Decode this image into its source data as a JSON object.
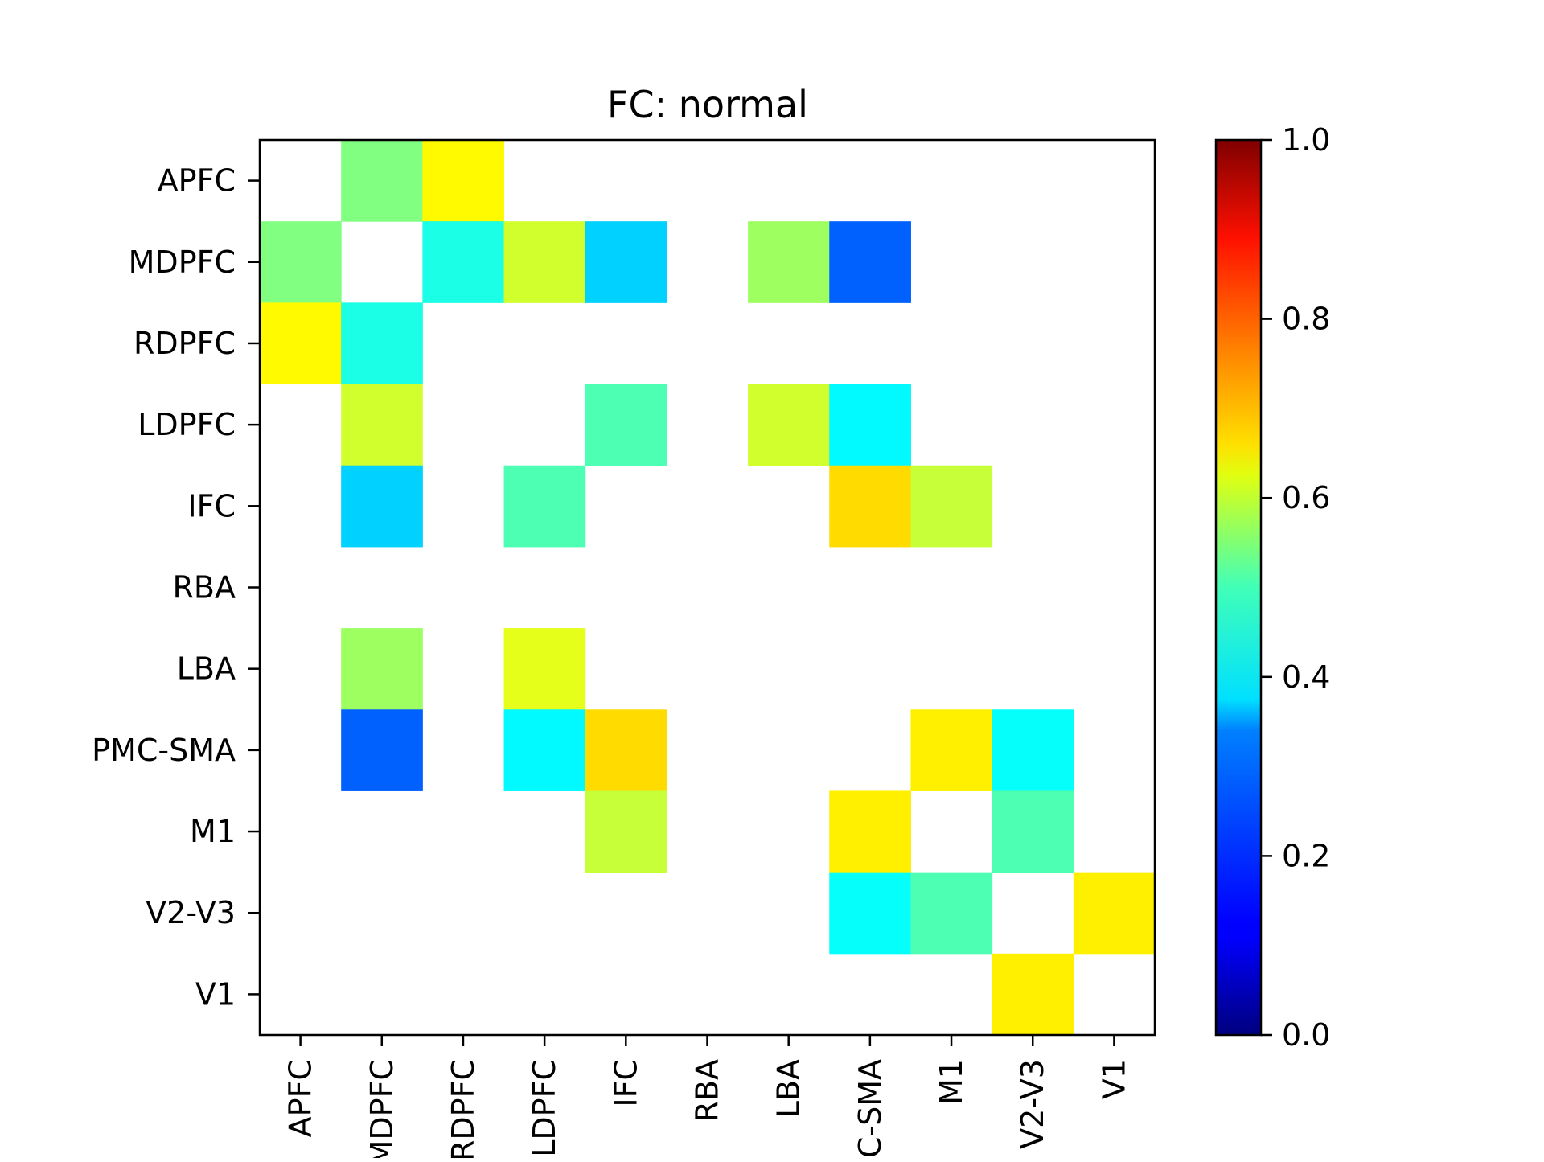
{
  "chart_data": {
    "type": "heatmap",
    "title": "FC: normal",
    "xlabel": "",
    "ylabel": "",
    "row_labels": [
      "APFC",
      "MDPFC",
      "RDPFC",
      "LDPFC",
      "IFC",
      "RBA",
      "LBA",
      "PMC-SMA",
      "M1",
      "V2-V3",
      "V1"
    ],
    "col_labels": [
      "APFC",
      "MDPFC",
      "RDPFC",
      "LDPFC",
      "IFC",
      "RBA",
      "LBA",
      "PMC-SMA",
      "M1",
      "V2-V3",
      "V1"
    ],
    "values": [
      [
        null,
        0.5,
        0.63,
        null,
        null,
        null,
        null,
        null,
        null,
        null,
        null
      ],
      [
        0.5,
        null,
        0.4,
        0.58,
        0.33,
        null,
        0.53,
        0.22,
        null,
        null,
        null
      ],
      [
        0.63,
        0.4,
        null,
        null,
        null,
        null,
        null,
        null,
        null,
        null,
        null
      ],
      [
        null,
        0.58,
        null,
        null,
        0.45,
        null,
        0.58,
        0.37,
        null,
        null,
        null
      ],
      [
        null,
        0.33,
        null,
        0.45,
        null,
        null,
        null,
        0.66,
        0.57,
        null,
        null
      ],
      [
        null,
        null,
        null,
        null,
        null,
        null,
        null,
        null,
        null,
        null,
        null
      ],
      [
        null,
        0.53,
        null,
        0.6,
        null,
        null,
        null,
        null,
        null,
        null,
        null
      ],
      [
        null,
        0.22,
        null,
        0.37,
        0.66,
        null,
        null,
        null,
        0.64,
        0.38,
        null
      ],
      [
        null,
        null,
        null,
        null,
        0.57,
        null,
        null,
        0.64,
        null,
        0.45,
        null
      ],
      [
        null,
        null,
        null,
        null,
        null,
        null,
        null,
        0.38,
        0.45,
        null,
        0.64
      ],
      [
        null,
        null,
        null,
        null,
        null,
        null,
        null,
        null,
        null,
        0.64,
        null
      ]
    ],
    "colorbar": {
      "colormap": "jet",
      "range": [
        0.0,
        1.0
      ],
      "ticks": [
        0.0,
        0.2,
        0.4,
        0.6,
        0.8,
        1.0
      ],
      "tick_labels": [
        "0.0",
        "0.2",
        "0.4",
        "0.6",
        "0.8",
        "1.0"
      ]
    },
    "grid": false
  }
}
